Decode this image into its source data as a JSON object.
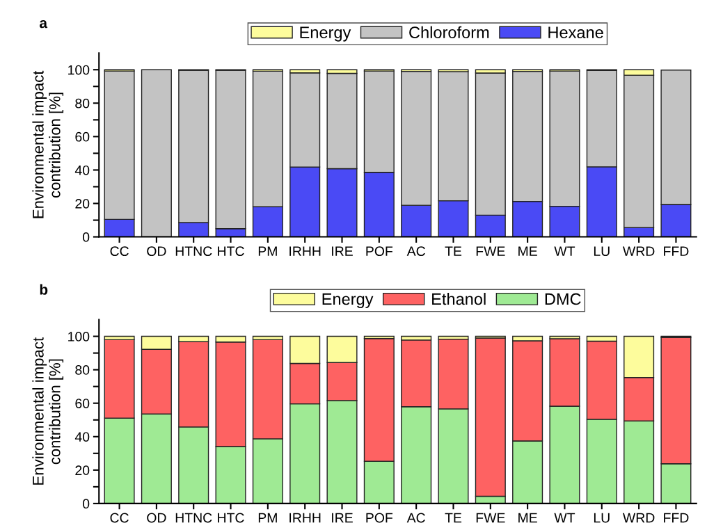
{
  "chart_data": [
    {
      "type": "bar",
      "title": "a",
      "ylabel": "Environmental impact\ncontribution [%]",
      "stacked": true,
      "legend": "top",
      "categories": [
        "CC",
        "OD",
        "HTNC",
        "HTC",
        "PM",
        "IRHH",
        "IRE",
        "POF",
        "AC",
        "TE",
        "FWE",
        "ME",
        "WT",
        "LU",
        "WRD",
        "FFD"
      ],
      "series": [
        {
          "name": "Hexane",
          "color": "#4a4af5",
          "values": [
            10.5,
            0,
            8.6,
            4.9,
            18.0,
            41.8,
            40.8,
            38.6,
            18.9,
            21.6,
            13.0,
            21.2,
            18.3,
            41.9,
            5.6,
            19.4
          ]
        },
        {
          "name": "Chloroform",
          "color": "#c3c3c3",
          "values": [
            88.7,
            100,
            91.1,
            94.8,
            81.1,
            56.3,
            57.0,
            60.6,
            80.1,
            77.3,
            85.0,
            77.8,
            80.9,
            57.7,
            91.1,
            80.4
          ]
        },
        {
          "name": "Energy",
          "color": "#fdfc9c",
          "values": [
            0.8,
            0,
            0.3,
            0.3,
            0.9,
            1.9,
            2.2,
            0.8,
            1.0,
            1.1,
            2.0,
            1.0,
            0.8,
            0.4,
            3.3,
            null
          ]
        }
      ],
      "ylim": [
        0,
        110
      ],
      "yticks": [
        0,
        {
          "value": 10,
          "label": null
        },
        20,
        {
          "value": 30,
          "label": null
        },
        40,
        {
          "value": 50,
          "label": null
        },
        60,
        {
          "value": 70,
          "label": null
        },
        80,
        {
          "value": 90,
          "label": null
        },
        100
      ]
    },
    {
      "type": "bar",
      "title": "b",
      "ylabel": "Environmental impact\ncontribution [%]",
      "stacked": true,
      "legend": "top",
      "categories": [
        "CC",
        "OD",
        "HTNC",
        "HTC",
        "PM",
        "IRHH",
        "IRE",
        "POF",
        "AC",
        "TE",
        "FWE",
        "ME",
        "WT",
        "LU",
        "WRD",
        "FFD"
      ],
      "series": [
        {
          "name": "DMC",
          "color": "#9fea94",
          "values": [
            51.1,
            53.6,
            45.8,
            34.1,
            38.7,
            59.6,
            61.6,
            25.3,
            57.9,
            56.6,
            4.3,
            37.4,
            58.2,
            50.4,
            49.4,
            23.8
          ]
        },
        {
          "name": "Ethanol",
          "color": "#fe6262",
          "values": [
            46.9,
            38.6,
            51.0,
            62.5,
            59.3,
            24.2,
            22.7,
            73.4,
            39.9,
            41.7,
            94.7,
            59.9,
            40.4,
            46.7,
            26.0,
            75.6
          ]
        },
        {
          "name": "Energy",
          "color": "#fdfc9c",
          "values": [
            2.0,
            7.8,
            3.2,
            3.4,
            2.0,
            16.2,
            15.7,
            1.3,
            2.2,
            1.7,
            1.0,
            2.7,
            1.4,
            2.9,
            24.6,
            0.6
          ]
        }
      ],
      "ylim": [
        0,
        110
      ],
      "yticks": [
        0,
        {
          "value": 10,
          "label": null
        },
        20,
        {
          "value": 30,
          "label": null
        },
        40,
        {
          "value": 50,
          "label": null
        },
        60,
        {
          "value": 70,
          "label": null
        },
        80,
        {
          "value": 90,
          "label": null
        },
        100
      ]
    }
  ]
}
